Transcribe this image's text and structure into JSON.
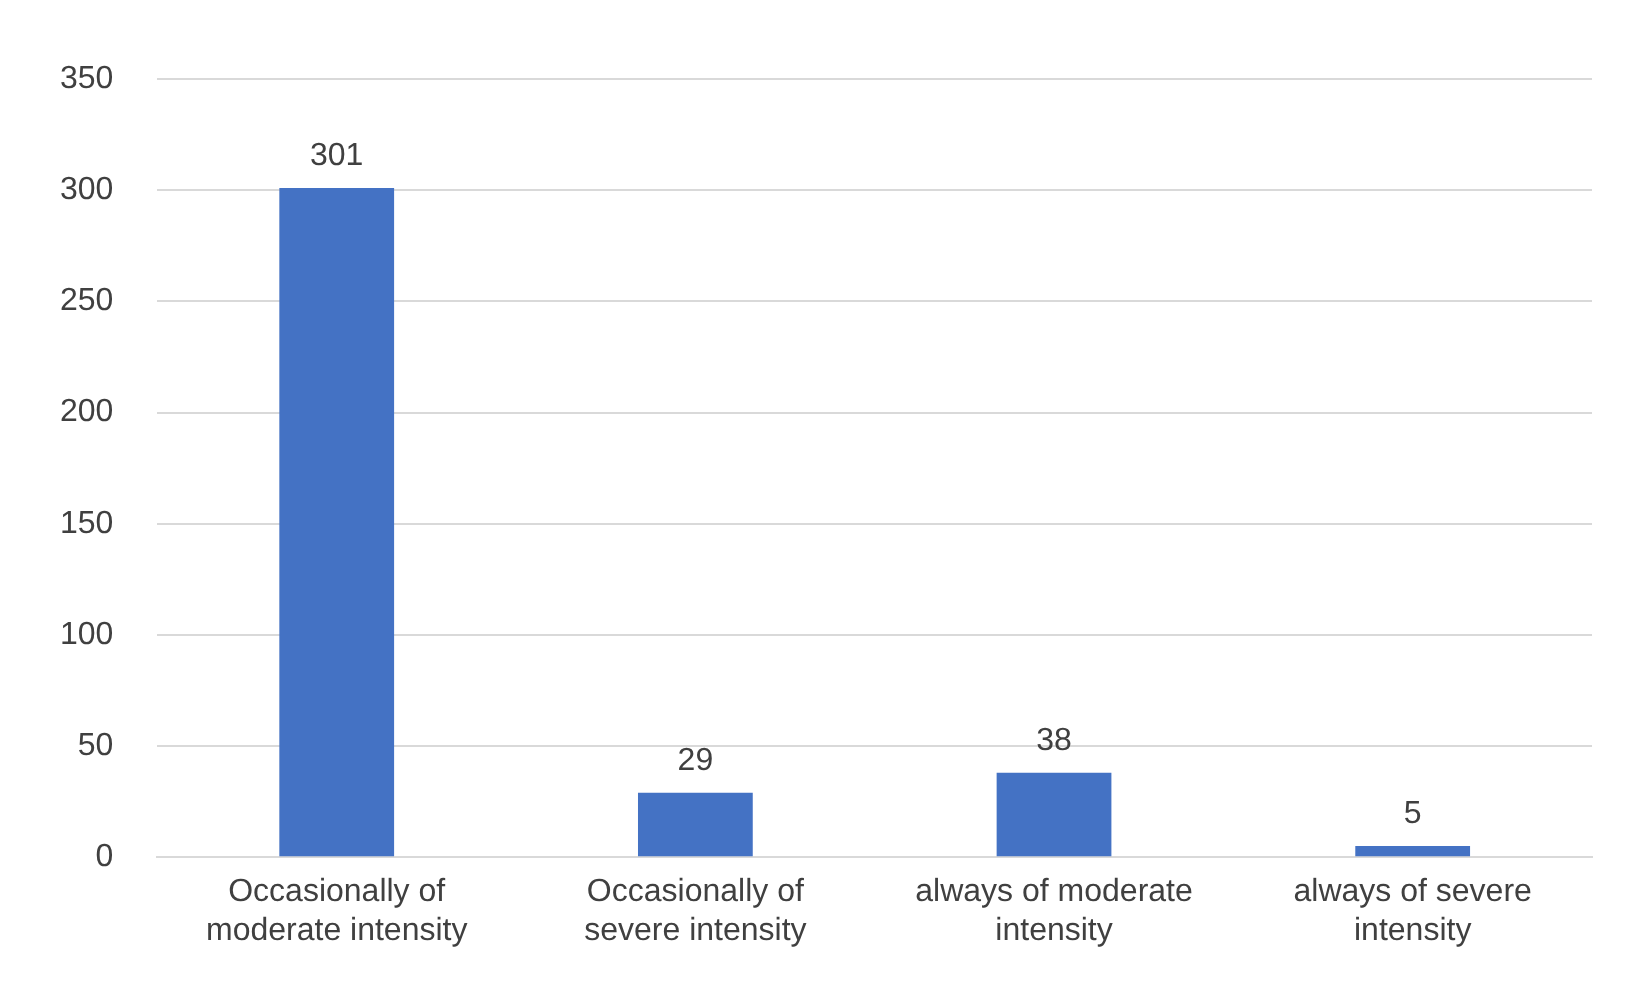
{
  "chart_data": {
    "type": "bar",
    "categories": [
      "Occasionally of moderate intensity",
      "Occasionally of severe intensity",
      "always of moderate intensity",
      "always of severe intensity"
    ],
    "values": [
      301,
      29,
      38,
      5
    ],
    "color": "#4472c4",
    "ylim": [
      0,
      350
    ],
    "yticks": [
      0,
      50,
      100,
      150,
      200,
      250,
      300,
      350
    ],
    "grid": "y",
    "data_labels": true,
    "legend": false
  }
}
